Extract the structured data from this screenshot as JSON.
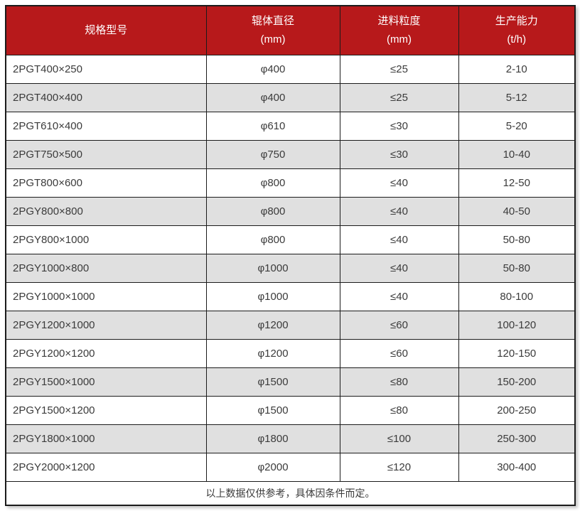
{
  "colors": {
    "header_bg": "#B7191B",
    "header_text": "#FFFFFF",
    "row_bg": "#FFFFFF",
    "row_alt_bg": "#E0E0E0",
    "border": "#1B1B1B",
    "body_text": "#3B3B3B"
  },
  "table": {
    "headers": [
      {
        "label": "规格型号",
        "unit": ""
      },
      {
        "label": "辊体直径",
        "unit": "(mm)"
      },
      {
        "label": "进料粒度",
        "unit": "(mm)"
      },
      {
        "label": "生产能力",
        "unit": "(t/h)"
      }
    ],
    "rows": [
      {
        "model": "2PGT400×250",
        "diameter": "φ400",
        "feed": "≤25",
        "capacity": "2-10"
      },
      {
        "model": "2PGT400×400",
        "diameter": "φ400",
        "feed": "≤25",
        "capacity": "5-12"
      },
      {
        "model": "2PGT610×400",
        "diameter": "φ610",
        "feed": "≤30",
        "capacity": "5-20"
      },
      {
        "model": "2PGT750×500",
        "diameter": "φ750",
        "feed": "≤30",
        "capacity": "10-40"
      },
      {
        "model": "2PGT800×600",
        "diameter": "φ800",
        "feed": "≤40",
        "capacity": "12-50"
      },
      {
        "model": "2PGY800×800",
        "diameter": "φ800",
        "feed": "≤40",
        "capacity": "40-50"
      },
      {
        "model": "2PGY800×1000",
        "diameter": "φ800",
        "feed": "≤40",
        "capacity": "50-80"
      },
      {
        "model": "2PGY1000×800",
        "diameter": "φ1000",
        "feed": "≤40",
        "capacity": "50-80"
      },
      {
        "model": "2PGY1000×1000",
        "diameter": "φ1000",
        "feed": "≤40",
        "capacity": "80-100"
      },
      {
        "model": "2PGY1200×1000",
        "diameter": "φ1200",
        "feed": "≤60",
        "capacity": "100-120"
      },
      {
        "model": "2PGY1200×1200",
        "diameter": "φ1200",
        "feed": "≤60",
        "capacity": "120-150"
      },
      {
        "model": "2PGY1500×1000",
        "diameter": "φ1500",
        "feed": "≤80",
        "capacity": "150-200"
      },
      {
        "model": "2PGY1500×1200",
        "diameter": "φ1500",
        "feed": "≤80",
        "capacity": "200-250"
      },
      {
        "model": "2PGY1800×1000",
        "diameter": "φ1800",
        "feed": "≤100",
        "capacity": "250-300"
      },
      {
        "model": "2PGY2000×1200",
        "diameter": "φ2000",
        "feed": "≤120",
        "capacity": "300-400"
      }
    ],
    "footnote": "以上数据仅供参考，具体因条件而定。"
  }
}
